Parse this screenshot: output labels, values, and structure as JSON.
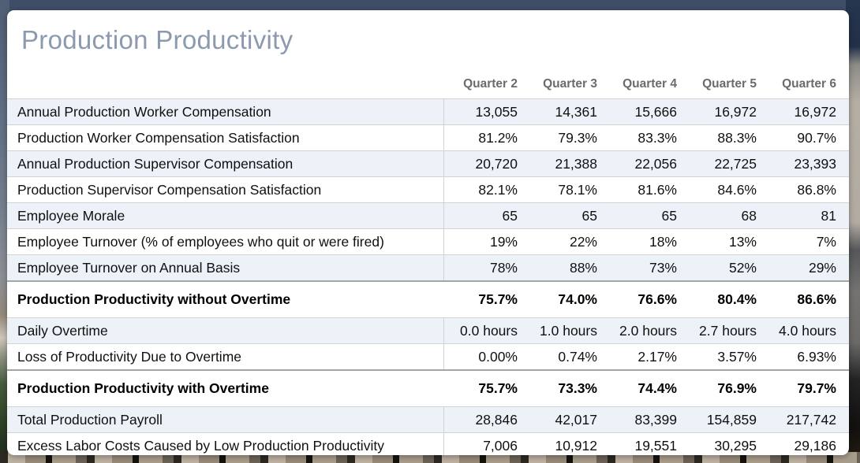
{
  "title": "Production Productivity",
  "table": {
    "columns": [
      "Quarter 2",
      "Quarter 3",
      "Quarter 4",
      "Quarter 5",
      "Quarter 6"
    ],
    "rows": [
      {
        "label": "Annual Production Worker Compensation",
        "values": [
          "13,055",
          "14,361",
          "15,666",
          "16,972",
          "16,972"
        ],
        "emphasis": false,
        "shaded": true
      },
      {
        "label": "Production Worker Compensation Satisfaction",
        "values": [
          "81.2%",
          "79.3%",
          "83.3%",
          "88.3%",
          "90.7%"
        ],
        "emphasis": false,
        "shaded": false
      },
      {
        "label": "Annual Production Supervisor Compensation",
        "values": [
          "20,720",
          "21,388",
          "22,056",
          "22,725",
          "23,393"
        ],
        "emphasis": false,
        "shaded": true
      },
      {
        "label": "Production Supervisor Compensation Satisfaction",
        "values": [
          "82.1%",
          "78.1%",
          "81.6%",
          "84.6%",
          "86.8%"
        ],
        "emphasis": false,
        "shaded": false
      },
      {
        "label": "Employee Morale",
        "values": [
          "65",
          "65",
          "65",
          "68",
          "81"
        ],
        "emphasis": false,
        "shaded": true
      },
      {
        "label": "Employee Turnover (% of employees who quit or were fired)",
        "values": [
          "19%",
          "22%",
          "18%",
          "13%",
          "7%"
        ],
        "emphasis": false,
        "shaded": false
      },
      {
        "label": "Employee Turnover on Annual Basis",
        "values": [
          "78%",
          "88%",
          "73%",
          "52%",
          "29%"
        ],
        "emphasis": false,
        "shaded": true
      },
      {
        "label": "Production Productivity without Overtime",
        "values": [
          "75.7%",
          "74.0%",
          "76.6%",
          "80.4%",
          "86.6%"
        ],
        "emphasis": true,
        "shaded": false
      },
      {
        "label": "Daily Overtime",
        "values": [
          "0.0 hours",
          "1.0 hours",
          "2.0 hours",
          "2.7 hours",
          "4.0 hours"
        ],
        "emphasis": false,
        "shaded": true
      },
      {
        "label": "Loss of Productivity Due to Overtime",
        "values": [
          "0.00%",
          "0.74%",
          "2.17%",
          "3.57%",
          "6.93%"
        ],
        "emphasis": false,
        "shaded": false
      },
      {
        "label": "Production Productivity with Overtime",
        "values": [
          "75.7%",
          "73.3%",
          "74.4%",
          "76.9%",
          "79.7%"
        ],
        "emphasis": true,
        "shaded": false
      },
      {
        "label": "Total Production Payroll",
        "values": [
          "28,846",
          "42,017",
          "83,399",
          "154,859",
          "217,742"
        ],
        "emphasis": false,
        "shaded": true
      },
      {
        "label": "Excess Labor Costs Caused by Low Production Productivity",
        "values": [
          "7,006",
          "10,912",
          "19,551",
          "30,295",
          "29,186"
        ],
        "emphasis": false,
        "shaded": false
      }
    ]
  },
  "colors": {
    "card_bg": "#ffffff",
    "title_text": "#8b9aae",
    "header_text": "#6a6b6e",
    "body_text": "#101010",
    "row_shaded_bg": "#edf2f8",
    "row_border": "#d2d2d2",
    "emphasis_border": "#a5a5a5"
  }
}
